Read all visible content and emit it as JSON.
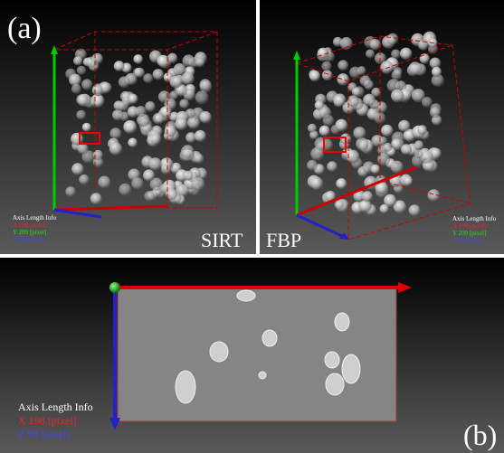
{
  "panel_a": {
    "label": "(a)",
    "left": {
      "method": "SIRT",
      "axis_info": {
        "title": "Axis Length Info",
        "lines": [
          "X 198 [pixel]",
          "Y 209 [pixel]",
          "Z 93 [pixel]"
        ]
      }
    },
    "right": {
      "method": "FBP",
      "axis_info": {
        "title": "Axis Length Info",
        "lines": [
          "X 198 [pixel]",
          "Y 209 [pixel]",
          "Z 93 [pixel]"
        ]
      }
    }
  },
  "panel_b": {
    "label": "(b)",
    "axis_info": {
      "title": "Axis Length Info",
      "lines": [
        "X 198 [pixel]",
        "Z 93 [pixel]"
      ]
    }
  }
}
